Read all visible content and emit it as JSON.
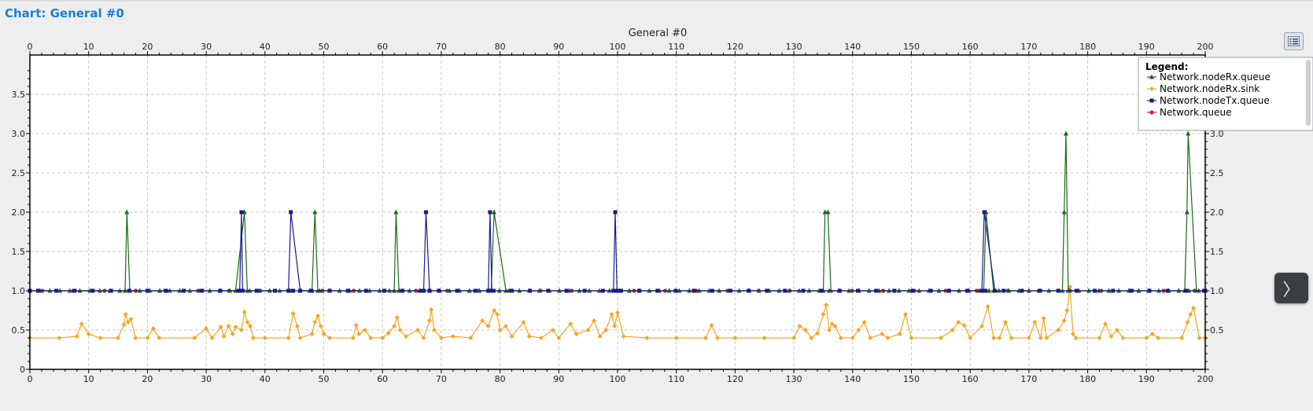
{
  "page": {
    "title": "Chart: General  #0"
  },
  "chart_data": {
    "type": "line",
    "title": "General  #0",
    "xlabel": "",
    "ylabel": "",
    "xlim": [
      0,
      200
    ],
    "ylim": [
      0,
      4
    ],
    "x_ticks": [
      0,
      10,
      20,
      30,
      40,
      50,
      60,
      70,
      80,
      90,
      100,
      110,
      120,
      130,
      140,
      150,
      160,
      170,
      180,
      190,
      200
    ],
    "y_ticks": [
      0,
      0.5,
      1.0,
      1.5,
      2.0,
      2.5,
      3.0,
      3.5
    ],
    "y_tick_labels": [
      "0",
      "0.5",
      "1.0",
      "1.5",
      "2.0",
      "2.5",
      "3.0",
      "3.5"
    ],
    "y_tick_labels_right": [
      "",
      "0.5",
      "1.0",
      "1.5",
      "2.0",
      "2.5",
      "3.0",
      ""
    ],
    "grid": true,
    "legend": {
      "title": "Legend:",
      "position": "top-right"
    },
    "series": [
      {
        "name": "Network.nodeRx.queue",
        "color": "#1a6b1a",
        "marker": "triangle",
        "points": [
          [
            0,
            1
          ],
          [
            16.2,
            1
          ],
          [
            16.5,
            2
          ],
          [
            17,
            1
          ],
          [
            35,
            1
          ],
          [
            36.5,
            2
          ],
          [
            37,
            1
          ],
          [
            48,
            1
          ],
          [
            48.5,
            2
          ],
          [
            49,
            1
          ],
          [
            62,
            1
          ],
          [
            62.3,
            2
          ],
          [
            62.8,
            1
          ],
          [
            78.5,
            1
          ],
          [
            79,
            2
          ],
          [
            81,
            1
          ],
          [
            135,
            1
          ],
          [
            135.3,
            2
          ],
          [
            135.8,
            2
          ],
          [
            136.3,
            1
          ],
          [
            162.3,
            1
          ],
          [
            162.7,
            2
          ],
          [
            164,
            1
          ],
          [
            175.7,
            1
          ],
          [
            176,
            2
          ],
          [
            176.3,
            3
          ],
          [
            176.7,
            1
          ],
          [
            196.5,
            1
          ],
          [
            196.9,
            2
          ],
          [
            197.1,
            3
          ],
          [
            198.5,
            1
          ],
          [
            200,
            1
          ]
        ]
      },
      {
        "name": "Network.nodeRx.sink",
        "color": "#f5a623",
        "marker": "diamond",
        "points": [
          [
            0,
            0.4
          ],
          [
            5,
            0.4
          ],
          [
            8,
            0.42
          ],
          [
            8.8,
            0.58
          ],
          [
            10,
            0.45
          ],
          [
            12,
            0.4
          ],
          [
            15,
            0.4
          ],
          [
            16,
            0.57
          ],
          [
            16.3,
            0.7
          ],
          [
            16.7,
            0.6
          ],
          [
            17.2,
            0.64
          ],
          [
            18,
            0.4
          ],
          [
            20,
            0.4
          ],
          [
            21,
            0.52
          ],
          [
            22,
            0.4
          ],
          [
            28,
            0.4
          ],
          [
            30,
            0.52
          ],
          [
            31,
            0.4
          ],
          [
            32.5,
            0.54
          ],
          [
            33,
            0.42
          ],
          [
            33.8,
            0.55
          ],
          [
            34.5,
            0.45
          ],
          [
            35,
            0.54
          ],
          [
            36,
            0.5
          ],
          [
            36.5,
            0.73
          ],
          [
            37,
            0.6
          ],
          [
            37.5,
            0.55
          ],
          [
            38,
            0.4
          ],
          [
            40,
            0.4
          ],
          [
            44,
            0.4
          ],
          [
            44.8,
            0.71
          ],
          [
            45.5,
            0.55
          ],
          [
            46,
            0.4
          ],
          [
            48,
            0.45
          ],
          [
            48.5,
            0.6
          ],
          [
            49,
            0.68
          ],
          [
            49.5,
            0.55
          ],
          [
            50,
            0.45
          ],
          [
            51,
            0.4
          ],
          [
            55,
            0.4
          ],
          [
            55.5,
            0.56
          ],
          [
            56,
            0.45
          ],
          [
            57,
            0.5
          ],
          [
            58,
            0.4
          ],
          [
            60,
            0.4
          ],
          [
            61,
            0.46
          ],
          [
            62,
            0.55
          ],
          [
            62.5,
            0.66
          ],
          [
            63,
            0.5
          ],
          [
            64,
            0.42
          ],
          [
            66,
            0.5
          ],
          [
            67,
            0.4
          ],
          [
            68,
            0.62
          ],
          [
            68.3,
            0.76
          ],
          [
            68.8,
            0.5
          ],
          [
            70,
            0.4
          ],
          [
            72,
            0.42
          ],
          [
            75,
            0.4
          ],
          [
            77,
            0.62
          ],
          [
            78,
            0.55
          ],
          [
            79,
            0.75
          ],
          [
            79.5,
            0.7
          ],
          [
            80,
            0.5
          ],
          [
            81,
            0.55
          ],
          [
            82,
            0.42
          ],
          [
            84,
            0.6
          ],
          [
            85,
            0.42
          ],
          [
            87,
            0.4
          ],
          [
            89,
            0.5
          ],
          [
            90,
            0.4
          ],
          [
            92,
            0.58
          ],
          [
            93,
            0.45
          ],
          [
            95,
            0.5
          ],
          [
            96,
            0.62
          ],
          [
            97,
            0.42
          ],
          [
            98,
            0.5
          ],
          [
            99,
            0.7
          ],
          [
            99.5,
            0.55
          ],
          [
            100,
            0.72
          ],
          [
            101,
            0.42
          ],
          [
            105,
            0.4
          ],
          [
            110,
            0.4
          ],
          [
            115,
            0.4
          ],
          [
            116,
            0.56
          ],
          [
            117,
            0.4
          ],
          [
            120,
            0.4
          ],
          [
            125,
            0.4
          ],
          [
            130,
            0.4
          ],
          [
            131,
            0.55
          ],
          [
            132,
            0.5
          ],
          [
            133,
            0.4
          ],
          [
            134,
            0.46
          ],
          [
            135,
            0.7
          ],
          [
            135.5,
            0.82
          ],
          [
            136,
            0.5
          ],
          [
            136.5,
            0.58
          ],
          [
            137,
            0.55
          ],
          [
            138,
            0.4
          ],
          [
            140,
            0.4
          ],
          [
            141,
            0.5
          ],
          [
            142,
            0.6
          ],
          [
            143,
            0.4
          ],
          [
            145,
            0.45
          ],
          [
            146,
            0.4
          ],
          [
            148,
            0.45
          ],
          [
            149,
            0.7
          ],
          [
            150,
            0.4
          ],
          [
            155,
            0.4
          ],
          [
            157,
            0.5
          ],
          [
            158,
            0.6
          ],
          [
            159,
            0.56
          ],
          [
            160,
            0.4
          ],
          [
            162,
            0.55
          ],
          [
            163,
            0.8
          ],
          [
            164,
            0.4
          ],
          [
            165,
            0.4
          ],
          [
            166,
            0.6
          ],
          [
            167,
            0.4
          ],
          [
            170,
            0.4
          ],
          [
            171,
            0.6
          ],
          [
            172,
            0.4
          ],
          [
            172.5,
            0.65
          ],
          [
            173,
            0.4
          ],
          [
            175,
            0.5
          ],
          [
            176,
            0.62
          ],
          [
            176.5,
            0.75
          ],
          [
            177,
            1.05
          ],
          [
            177.5,
            0.45
          ],
          [
            178,
            0.4
          ],
          [
            182,
            0.4
          ],
          [
            183,
            0.58
          ],
          [
            184,
            0.42
          ],
          [
            185,
            0.5
          ],
          [
            186,
            0.4
          ],
          [
            190,
            0.4
          ],
          [
            191,
            0.45
          ],
          [
            192,
            0.4
          ],
          [
            196,
            0.4
          ],
          [
            197,
            0.6
          ],
          [
            197.5,
            0.7
          ],
          [
            198,
            0.78
          ],
          [
            199,
            0.4
          ],
          [
            200,
            0.4
          ]
        ]
      },
      {
        "name": "Network.nodeTx.queue",
        "color": "#1a1a8c",
        "marker": "square",
        "points": [
          [
            0,
            1
          ],
          [
            35.7,
            1
          ],
          [
            36,
            2
          ],
          [
            36.2,
            1
          ],
          [
            44,
            1
          ],
          [
            44.4,
            2
          ],
          [
            46,
            1
          ],
          [
            67,
            1
          ],
          [
            67.4,
            2
          ],
          [
            68,
            1
          ],
          [
            78,
            1
          ],
          [
            78.3,
            2
          ],
          [
            78.6,
            1
          ],
          [
            99.3,
            1
          ],
          [
            99.6,
            2
          ],
          [
            99.9,
            1
          ],
          [
            162,
            1
          ],
          [
            162.4,
            2
          ],
          [
            164.2,
            1
          ],
          [
            200,
            1
          ]
        ]
      },
      {
        "name": "Network.queue",
        "color": "#e02020",
        "marker": "circle",
        "points": [
          [
            0,
            1
          ],
          [
            200,
            1
          ]
        ]
      }
    ]
  }
}
